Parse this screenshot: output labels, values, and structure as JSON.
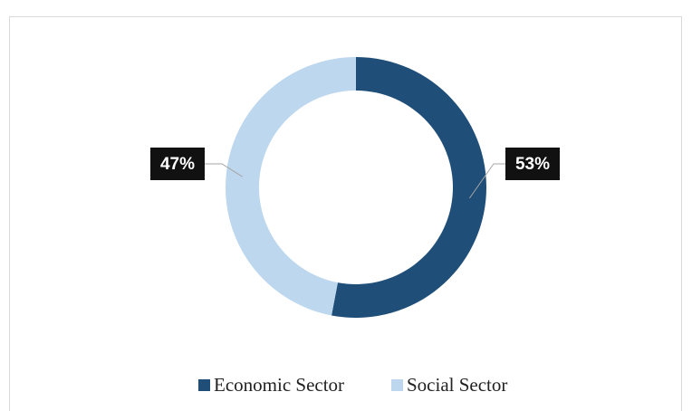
{
  "chart_data": {
    "type": "donut",
    "categories": [
      "Economic Sector",
      "Social Sector"
    ],
    "values": [
      53,
      47
    ],
    "value_labels": [
      "53%",
      "47%"
    ],
    "colors": [
      "#1f4e79",
      "#bdd7ee"
    ],
    "legend": "bottom"
  }
}
